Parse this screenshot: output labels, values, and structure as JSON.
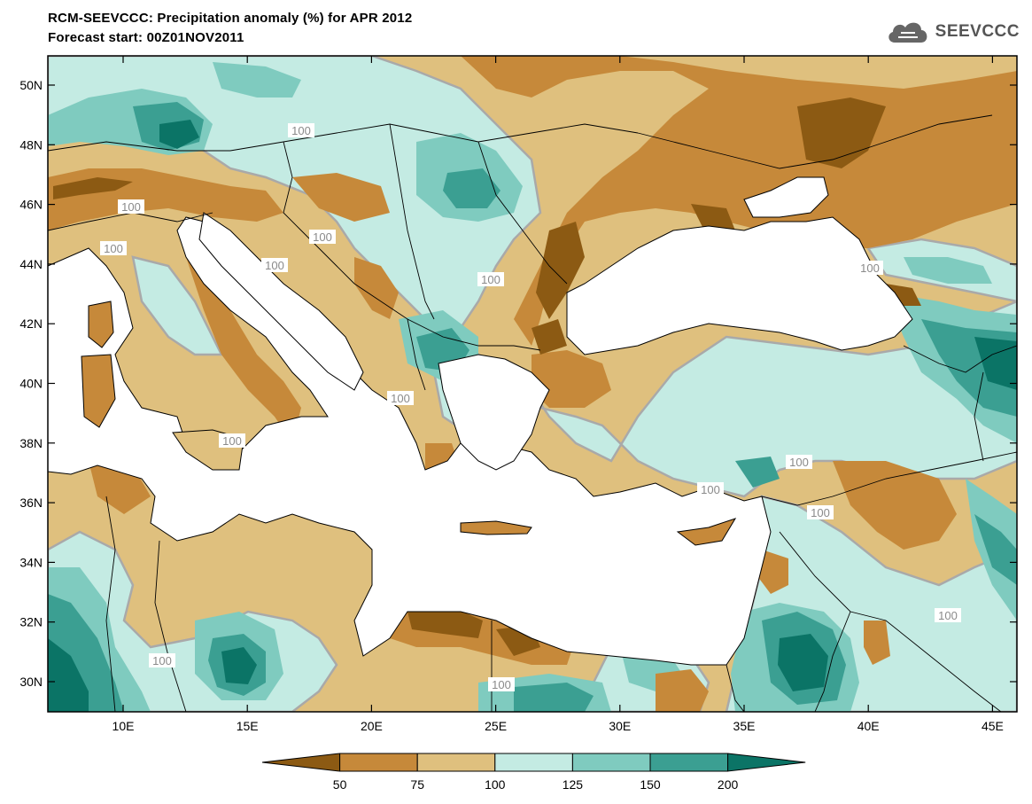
{
  "title": "RCM-SEEVCCC: Precipitation anomaly (%) for APR 2012",
  "subtitle": "Forecast start: 00Z01NOV2011",
  "logo_text": "SEEVCCC",
  "lat_labels": [
    "50N",
    "48N",
    "46N",
    "44N",
    "42N",
    "40N",
    "38N",
    "36N",
    "34N",
    "32N",
    "30N"
  ],
  "lon_labels": [
    "10E",
    "15E",
    "20E",
    "25E",
    "30E",
    "35E",
    "40E",
    "45E"
  ],
  "contour_labels": [
    "100",
    "100",
    "100",
    "100",
    "100",
    "100",
    "100",
    "100",
    "100",
    "100",
    "100",
    "100",
    "100",
    "100",
    "100"
  ],
  "colorbar": {
    "labels": [
      "50",
      "75",
      "100",
      "125",
      "150",
      "200"
    ],
    "colors": [
      "#8c5a13",
      "#c6893a",
      "#dfc07e",
      "#c4ebe3",
      "#7fcbbf",
      "#3b9f92",
      "#0b7466"
    ]
  },
  "colors": {
    "sea": "#ffffff",
    "border": "#000000",
    "contour_line": "#a9a9a9"
  }
}
